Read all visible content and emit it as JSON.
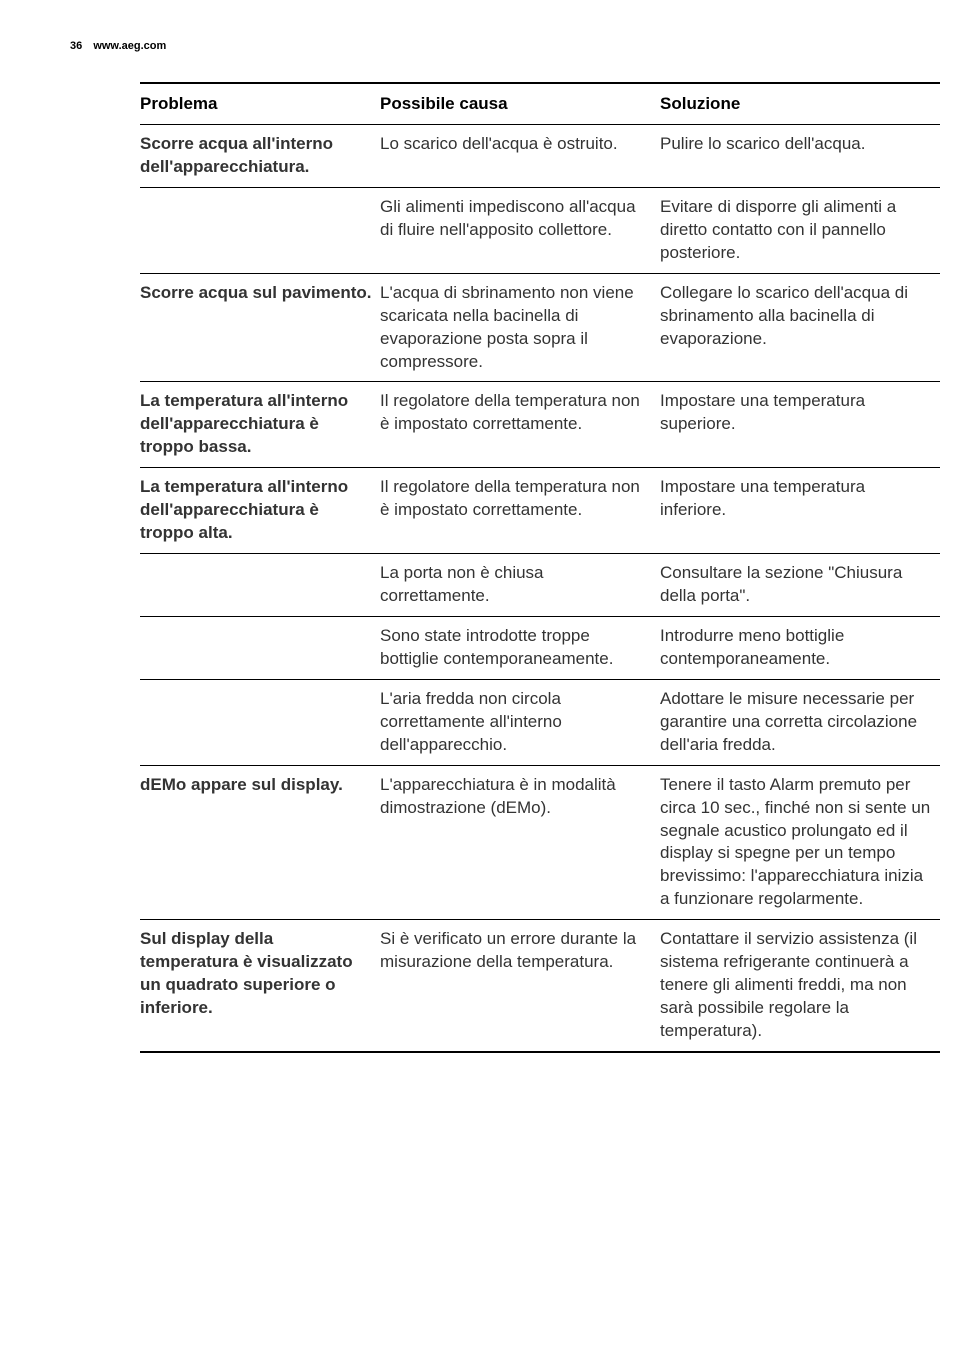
{
  "header": {
    "page_number": "36",
    "url": "www.aeg.com"
  },
  "table": {
    "headers": {
      "problem": "Problema",
      "cause": "Possibile causa",
      "solution": "Soluzione"
    },
    "rows": [
      {
        "problem": "Scorre acqua all'interno dell'apparecchiatura.",
        "cause": "Lo scarico dell'acqua è ostruito.",
        "solution": "Pulire lo scarico dell'acqua."
      },
      {
        "problem": "",
        "cause": "Gli alimenti impediscono all'acqua di fluire nell'apposito collettore.",
        "solution": "Evitare di disporre gli alimenti a diretto contatto con il pannello posteriore."
      },
      {
        "problem": "Scorre acqua sul pavimento.",
        "cause": "L'acqua di sbrinamento non viene scaricata nella bacinella di evaporazione posta sopra il compressore.",
        "solution": "Collegare lo scarico dell'acqua di sbrinamento alla bacinella di evaporazione."
      },
      {
        "problem": "La temperatura all'interno dell'apparecchiatura è troppo bassa.",
        "cause": "Il regolatore della temperatura non è impostato correttamente.",
        "solution": "Impostare una temperatura superiore."
      },
      {
        "problem": "La temperatura all'interno dell'apparecchiatura è troppo alta.",
        "cause": "Il regolatore della temperatura non è impostato correttamente.",
        "solution": "Impostare una temperatura inferiore."
      },
      {
        "problem": "",
        "cause": "La porta non è chiusa correttamente.",
        "solution": "Consultare la sezione \"Chiusura della porta\"."
      },
      {
        "problem": "",
        "cause": "Sono state introdotte troppe bottiglie contemporaneamente.",
        "solution": "Introdurre meno bottiglie contemporaneamente."
      },
      {
        "problem": "",
        "cause": "L'aria fredda non circola correttamente all'interno dell'apparecchio.",
        "solution": "Adottare le misure necessarie per garantire una corretta circolazione dell'aria fredda."
      },
      {
        "problem": "dEMo appare sul display.",
        "cause": "L'apparecchiatura è in modalità dimostrazione (dEMo).",
        "solution": "Tenere il tasto Alarm premuto per circa 10 sec., finché non si sente un segnale acustico prolungato ed il display si spegne per un tempo brevissimo: l'apparecchiatura inizia a funzionare regolarmente."
      },
      {
        "problem": "Sul display della temperatura è visualizzato un quadrato superiore o inferiore.",
        "cause": "Si è verificato un errore durante la misurazione della temperatura.",
        "solution": "Contattare il servizio assistenza (il sistema refrigerante continuerà a tenere gli alimenti freddi, ma non sarà possibile regolare la temperatura)."
      }
    ]
  }
}
